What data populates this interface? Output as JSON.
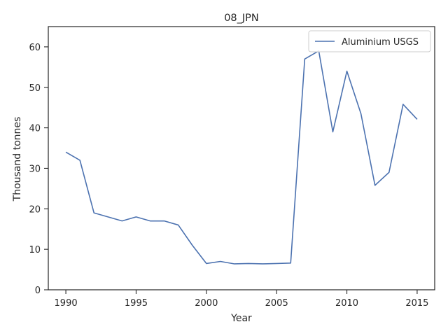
{
  "chart_data": {
    "type": "line",
    "title": "08_JPN",
    "xlabel": "Year",
    "ylabel": "Thousand tonnes",
    "xlim": [
      1988.75,
      2016.25
    ],
    "ylim": [
      0,
      65
    ],
    "xticks": [
      1990,
      1995,
      2000,
      2005,
      2010,
      2015
    ],
    "yticks": [
      0,
      10,
      20,
      30,
      40,
      50,
      60
    ],
    "grid": false,
    "legend_position": "top-right",
    "series": [
      {
        "name": "Aluminium USGS",
        "color": "#4c72b0",
        "x": [
          1990,
          1991,
          1992,
          1993,
          1994,
          1995,
          1996,
          1997,
          1998,
          1999,
          2000,
          2001,
          2002,
          2003,
          2004,
          2005,
          2006,
          2007,
          2008,
          2009,
          2010,
          2011,
          2012,
          2013,
          2014,
          2015
        ],
        "y": [
          34,
          32,
          19,
          18,
          17,
          18,
          17,
          17,
          16,
          11,
          6.5,
          7,
          6.4,
          6.5,
          6.4,
          6.5,
          6.6,
          57,
          59,
          39,
          54,
          43.5,
          25.8,
          29,
          45.8,
          42.1
        ]
      }
    ]
  }
}
